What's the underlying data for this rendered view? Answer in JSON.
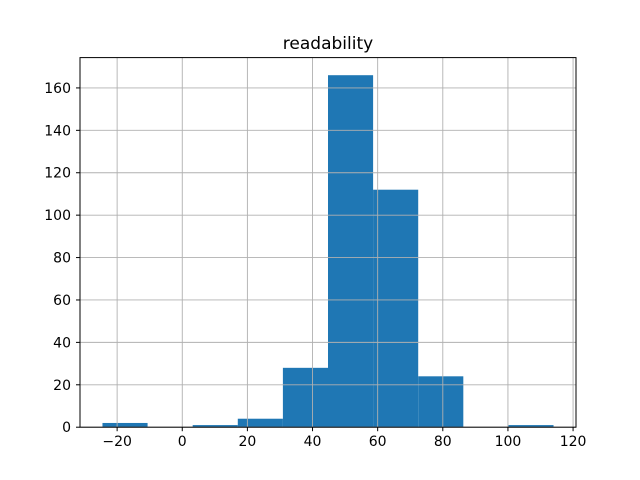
{
  "figure": {
    "background": "#ffffff"
  },
  "chart_data": {
    "type": "bar",
    "subtype": "histogram",
    "title": "readability",
    "xlabel": "",
    "ylabel": "",
    "bin_edges": [
      -24.5,
      -10.65,
      3.2,
      17.05,
      30.9,
      44.75,
      58.6,
      72.45,
      86.3,
      100.15,
      114.0
    ],
    "counts": [
      2,
      0,
      1,
      4,
      28,
      166,
      112,
      24,
      0,
      1
    ],
    "xticks": [
      -20,
      0,
      20,
      40,
      60,
      80,
      100,
      120
    ],
    "yticks": [
      0,
      20,
      40,
      60,
      80,
      100,
      120,
      140,
      160
    ],
    "xlim": [
      -31.4,
      120.9
    ],
    "ylim": [
      0,
      174.3
    ],
    "grid": true,
    "grid_over_bars": true,
    "legend": "none",
    "bar_color": "#1f77b4",
    "grid_color": "#b0b0b0",
    "axis_color": "#000000",
    "background": "#ffffff"
  }
}
